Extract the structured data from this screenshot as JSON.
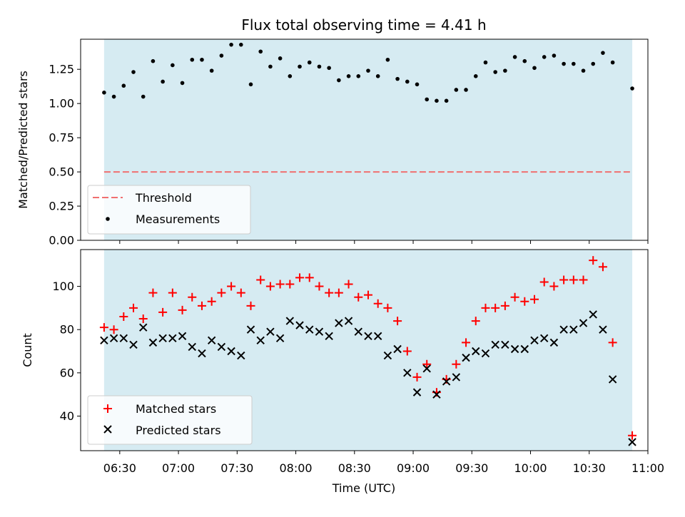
{
  "chart_data": [
    {
      "type": "scatter",
      "title": "Flux total observing time = 4.41 h",
      "xlabel": "",
      "ylabel": "Matched/Predicted stars",
      "ylim": [
        0,
        1.47
      ],
      "yticks": [
        "0.00",
        "0.25",
        "0.50",
        "0.75",
        "1.00",
        "1.25"
      ],
      "ytick_values": [
        0,
        0.25,
        0.5,
        0.75,
        1.0,
        1.25
      ],
      "shaded_span": [
        "06:22",
        "10:52"
      ],
      "shade_color": "#add8e6",
      "threshold": {
        "name": "Threshold",
        "value": 0.5,
        "color": "#f07070"
      },
      "legend": [
        "Threshold",
        "Measurements"
      ],
      "legend_position": "lower-left",
      "series": [
        {
          "name": "Measurements",
          "color": "#000000",
          "marker": "dot",
          "x": [
            "06:22",
            "06:27",
            "06:32",
            "06:37",
            "06:42",
            "06:47",
            "06:52",
            "06:57",
            "07:02",
            "07:07",
            "07:12",
            "07:17",
            "07:22",
            "07:27",
            "07:32",
            "07:37",
            "07:42",
            "07:47",
            "07:52",
            "07:57",
            "08:02",
            "08:07",
            "08:12",
            "08:17",
            "08:22",
            "08:27",
            "08:32",
            "08:37",
            "08:42",
            "08:47",
            "08:52",
            "08:57",
            "09:02",
            "09:07",
            "09:12",
            "09:17",
            "09:22",
            "09:27",
            "09:32",
            "09:37",
            "09:42",
            "09:47",
            "09:52",
            "09:57",
            "10:02",
            "10:07",
            "10:12",
            "10:17",
            "10:22",
            "10:27",
            "10:32",
            "10:37",
            "10:42",
            "10:52"
          ],
          "y": [
            1.08,
            1.05,
            1.13,
            1.23,
            1.05,
            1.31,
            1.16,
            1.28,
            1.15,
            1.32,
            1.32,
            1.24,
            1.35,
            1.43,
            1.43,
            1.14,
            1.38,
            1.27,
            1.33,
            1.2,
            1.27,
            1.3,
            1.27,
            1.26,
            1.17,
            1.2,
            1.2,
            1.24,
            1.2,
            1.32,
            1.18,
            1.16,
            1.14,
            1.03,
            1.02,
            1.02,
            1.1,
            1.1,
            1.2,
            1.3,
            1.23,
            1.24,
            1.34,
            1.31,
            1.26,
            1.34,
            1.35,
            1.29,
            1.29,
            1.24,
            1.29,
            1.37,
            1.3,
            1.11
          ]
        }
      ]
    },
    {
      "type": "scatter",
      "title": "",
      "xlabel": "Time (UTC)",
      "ylabel": "Count",
      "ylim": [
        24,
        117
      ],
      "yticks": [
        "40",
        "60",
        "80",
        "100"
      ],
      "ytick_values": [
        40,
        60,
        80,
        100
      ],
      "xlim": [
        "06:10",
        "11:00"
      ],
      "xticks": [
        "06:30",
        "07:00",
        "07:30",
        "08:00",
        "08:30",
        "09:00",
        "09:30",
        "10:00",
        "10:30",
        "11:00"
      ],
      "shaded_span": [
        "06:22",
        "10:52"
      ],
      "shade_color": "#add8e6",
      "legend": [
        "Matched stars",
        "Predicted stars"
      ],
      "legend_position": "lower-left",
      "series": [
        {
          "name": "Matched stars",
          "color": "#ff0000",
          "marker": "plus",
          "x": [
            "06:22",
            "06:27",
            "06:32",
            "06:37",
            "06:42",
            "06:47",
            "06:52",
            "06:57",
            "07:02",
            "07:07",
            "07:12",
            "07:17",
            "07:22",
            "07:27",
            "07:32",
            "07:37",
            "07:42",
            "07:47",
            "07:52",
            "07:57",
            "08:02",
            "08:07",
            "08:12",
            "08:17",
            "08:22",
            "08:27",
            "08:32",
            "08:37",
            "08:42",
            "08:47",
            "08:52",
            "08:57",
            "09:02",
            "09:07",
            "09:12",
            "09:17",
            "09:22",
            "09:27",
            "09:32",
            "09:37",
            "09:42",
            "09:47",
            "09:52",
            "09:57",
            "10:02",
            "10:07",
            "10:12",
            "10:17",
            "10:22",
            "10:27",
            "10:32",
            "10:37",
            "10:42",
            "10:52"
          ],
          "y": [
            81,
            80,
            86,
            90,
            85,
            97,
            88,
            97,
            89,
            95,
            91,
            93,
            97,
            100,
            97,
            91,
            103,
            100,
            101,
            101,
            104,
            104,
            100,
            97,
            97,
            101,
            95,
            96,
            92,
            90,
            84,
            70,
            58,
            64,
            51,
            57,
            64,
            74,
            84,
            90,
            90,
            91,
            95,
            93,
            94,
            102,
            100,
            103,
            103,
            103,
            112,
            109,
            74,
            31
          ]
        },
        {
          "name": "Predicted stars",
          "color": "#000000",
          "marker": "x",
          "x": [
            "06:22",
            "06:27",
            "06:32",
            "06:37",
            "06:42",
            "06:47",
            "06:52",
            "06:57",
            "07:02",
            "07:07",
            "07:12",
            "07:17",
            "07:22",
            "07:27",
            "07:32",
            "07:37",
            "07:42",
            "07:47",
            "07:52",
            "07:57",
            "08:02",
            "08:07",
            "08:12",
            "08:17",
            "08:22",
            "08:27",
            "08:32",
            "08:37",
            "08:42",
            "08:47",
            "08:52",
            "08:57",
            "09:02",
            "09:07",
            "09:12",
            "09:17",
            "09:22",
            "09:27",
            "09:32",
            "09:37",
            "09:42",
            "09:47",
            "09:52",
            "09:57",
            "10:02",
            "10:07",
            "10:12",
            "10:17",
            "10:22",
            "10:27",
            "10:32",
            "10:37",
            "10:42",
            "10:52"
          ],
          "y": [
            75,
            76,
            76,
            73,
            81,
            74,
            76,
            76,
            77,
            72,
            69,
            75,
            72,
            70,
            68,
            80,
            75,
            79,
            76,
            84,
            82,
            80,
            79,
            77,
            83,
            84,
            79,
            77,
            77,
            68,
            71,
            60,
            51,
            62,
            50,
            56,
            58,
            67,
            70,
            69,
            73,
            73,
            71,
            71,
            75,
            76,
            74,
            80,
            80,
            83,
            87,
            80,
            57,
            28
          ]
        }
      ]
    }
  ]
}
